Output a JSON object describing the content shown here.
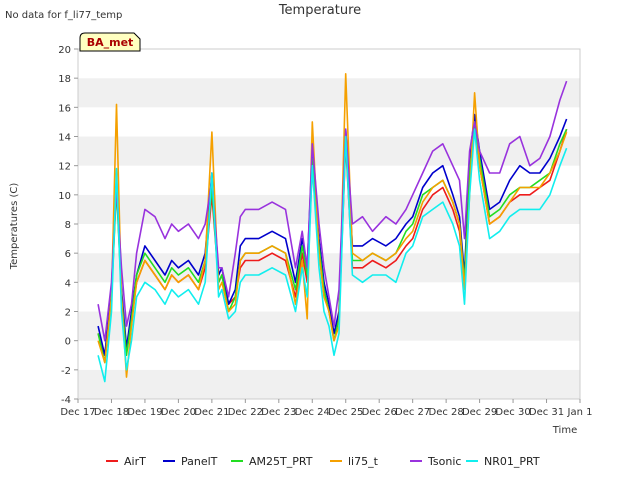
{
  "nodata_note": "No data for f_li77_temp",
  "badge": "BA_met",
  "colors": {
    "AirT": "#ee1c1c",
    "PanelT": "#0000cc",
    "AM25T_PRT": "#22dd22",
    "li75_t": "#f5a000",
    "Tsonic": "#9933dd",
    "NR01_PRT": "#11eeee"
  },
  "chart_data": {
    "type": "line",
    "title": "Temperature",
    "xlabel": "Time",
    "ylabel": "Temperatures (C)",
    "ylim": [
      -4,
      20
    ],
    "xlim": [
      0,
      15
    ],
    "yticks": [
      -4,
      -2,
      0,
      2,
      4,
      6,
      8,
      10,
      12,
      14,
      16,
      18,
      20
    ],
    "xtick_labels": [
      "Dec 17",
      "Dec 18",
      "Dec 19",
      "Dec 20",
      "Dec 21",
      "Dec 22",
      "Dec 23",
      "Dec 24",
      "Dec 25",
      "Dec 26",
      "Dec 27",
      "Dec 28",
      "Dec 29",
      "Dec 30",
      "Dec 31",
      "Jan 1"
    ],
    "legend_position": "bottom",
    "grid": "alternating horizontal bands",
    "x": [
      0.6,
      0.8,
      1.0,
      1.15,
      1.3,
      1.45,
      1.6,
      1.75,
      2.0,
      2.3,
      2.6,
      2.8,
      3.0,
      3.3,
      3.6,
      3.8,
      4.0,
      4.2,
      4.3,
      4.5,
      4.7,
      4.85,
      5.0,
      5.4,
      5.8,
      6.2,
      6.5,
      6.7,
      6.85,
      7.0,
      7.2,
      7.35,
      7.5,
      7.65,
      7.8,
      8.0,
      8.2,
      8.5,
      8.8,
      9.2,
      9.5,
      9.8,
      10.0,
      10.3,
      10.6,
      10.9,
      11.2,
      11.4,
      11.55,
      11.7,
      11.85,
      12.0,
      12.3,
      12.6,
      12.9,
      13.2,
      13.5,
      13.8,
      14.1,
      14.4,
      14.6
    ],
    "series": [
      {
        "name": "AirT",
        "values": [
          0.5,
          -1.0,
          3.0,
          11.0,
          3.0,
          -0.5,
          1.5,
          4.0,
          5.5,
          4.5,
          3.5,
          4.5,
          4.0,
          4.5,
          3.5,
          5.0,
          10.0,
          4.0,
          4.5,
          2.5,
          3.0,
          5.0,
          5.5,
          5.5,
          6.0,
          5.5,
          3.0,
          6.0,
          4.0,
          12.0,
          6.0,
          3.5,
          2.0,
          0.5,
          1.5,
          13.5,
          5.0,
          5.0,
          5.5,
          5.0,
          5.5,
          6.5,
          7.0,
          9.0,
          10.0,
          10.5,
          9.0,
          7.5,
          4.0,
          11.0,
          15.0,
          12.0,
          8.0,
          8.5,
          9.5,
          10.0,
          10.0,
          10.5,
          11.0,
          13.0,
          14.5
        ]
      },
      {
        "name": "PanelT",
        "values": [
          1.0,
          -1.0,
          3.5,
          11.2,
          3.5,
          -0.5,
          2.0,
          4.5,
          6.5,
          5.5,
          4.5,
          5.5,
          5.0,
          5.5,
          4.5,
          6.0,
          11.5,
          4.5,
          5.0,
          2.5,
          3.5,
          6.5,
          7.0,
          7.0,
          7.5,
          7.0,
          4.0,
          7.0,
          5.0,
          13.0,
          7.0,
          4.0,
          2.5,
          0.5,
          2.0,
          14.5,
          6.5,
          6.5,
          7.0,
          6.5,
          7.0,
          8.0,
          8.5,
          10.5,
          11.5,
          12.0,
          10.0,
          8.5,
          4.5,
          12.5,
          15.5,
          13.0,
          9.0,
          9.5,
          11.0,
          12.0,
          11.5,
          11.5,
          12.5,
          14.0,
          15.2
        ]
      },
      {
        "name": "AM25T_PRT",
        "values": [
          0.5,
          -1.5,
          3.0,
          10.5,
          3.0,
          -1.0,
          1.5,
          4.5,
          6.0,
          5.0,
          4.0,
          5.0,
          4.5,
          5.0,
          4.0,
          5.5,
          10.5,
          4.0,
          4.5,
          2.0,
          3.0,
          5.5,
          6.0,
          6.0,
          6.5,
          6.0,
          3.5,
          6.5,
          4.5,
          12.5,
          6.5,
          3.5,
          2.0,
          0.0,
          1.5,
          14.0,
          5.5,
          5.5,
          6.0,
          5.5,
          6.0,
          7.5,
          8.0,
          10.0,
          10.5,
          11.0,
          9.5,
          8.0,
          4.0,
          11.5,
          15.0,
          12.5,
          8.5,
          9.0,
          10.0,
          10.5,
          10.5,
          11.0,
          11.5,
          13.5,
          14.5
        ]
      },
      {
        "name": "li75_t",
        "values": [
          0.0,
          -1.5,
          3.0,
          16.2,
          3.0,
          -2.5,
          1.0,
          4.0,
          5.5,
          4.5,
          3.5,
          4.5,
          4.0,
          4.5,
          3.5,
          5.5,
          14.3,
          3.5,
          4.0,
          2.0,
          2.5,
          5.5,
          6.0,
          6.0,
          6.5,
          6.0,
          2.5,
          5.5,
          1.5,
          15.0,
          6.0,
          3.0,
          2.0,
          0.0,
          1.0,
          18.3,
          6.0,
          5.5,
          6.0,
          5.5,
          6.0,
          7.0,
          7.5,
          9.5,
          10.5,
          11.0,
          9.5,
          8.0,
          3.5,
          10.0,
          17.0,
          12.0,
          8.0,
          8.5,
          9.5,
          10.5,
          10.5,
          10.5,
          11.5,
          13.0,
          14.3
        ]
      },
      {
        "name": "Tsonic",
        "values": [
          2.5,
          0.0,
          4.0,
          10.5,
          5.0,
          1.0,
          2.5,
          6.0,
          9.0,
          8.5,
          7.0,
          8.0,
          7.5,
          8.0,
          7.0,
          8.0,
          11.0,
          5.0,
          5.0,
          3.0,
          6.0,
          8.5,
          9.0,
          9.0,
          9.5,
          9.0,
          5.0,
          7.5,
          5.0,
          13.5,
          8.0,
          5.0,
          3.0,
          1.0,
          3.5,
          14.5,
          8.0,
          8.5,
          7.5,
          8.5,
          8.0,
          9.0,
          10.0,
          11.5,
          13.0,
          13.5,
          12.0,
          11.0,
          7.0,
          13.0,
          15.0,
          13.0,
          11.5,
          11.5,
          13.5,
          14.0,
          12.0,
          12.5,
          14.0,
          16.5,
          17.8
        ]
      },
      {
        "name": "NR01_PRT",
        "values": [
          -1.0,
          -2.8,
          2.0,
          11.8,
          2.0,
          -2.0,
          0.0,
          3.0,
          4.0,
          3.5,
          2.5,
          3.5,
          3.0,
          3.5,
          2.5,
          4.0,
          11.5,
          3.0,
          3.5,
          1.5,
          2.0,
          4.0,
          4.5,
          4.5,
          5.0,
          4.5,
          2.0,
          5.0,
          3.0,
          12.0,
          5.0,
          2.0,
          1.0,
          -1.0,
          0.5,
          14.0,
          4.5,
          4.0,
          4.5,
          4.5,
          4.0,
          6.0,
          6.5,
          8.5,
          9.0,
          9.5,
          8.0,
          6.5,
          2.5,
          10.0,
          14.5,
          11.0,
          7.0,
          7.5,
          8.5,
          9.0,
          9.0,
          9.0,
          10.0,
          12.0,
          13.2
        ]
      }
    ]
  }
}
